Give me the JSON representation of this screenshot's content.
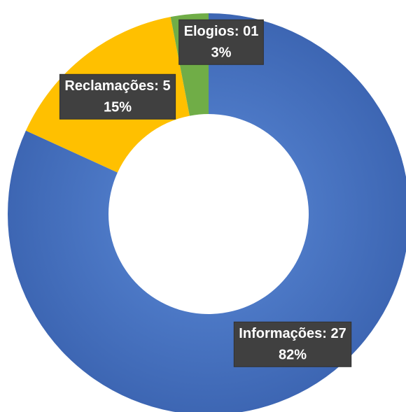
{
  "chart_data": {
    "type": "donut",
    "categories": [
      "Informações",
      "Reclamações",
      "Elogios"
    ],
    "values": [
      27,
      5,
      1
    ],
    "value_labels": [
      "27",
      "5",
      "01"
    ],
    "percent_labels": [
      "82%",
      "15%",
      "3%"
    ],
    "colors": [
      "#4472c4",
      "#ffc000",
      "#70ad47"
    ]
  }
}
